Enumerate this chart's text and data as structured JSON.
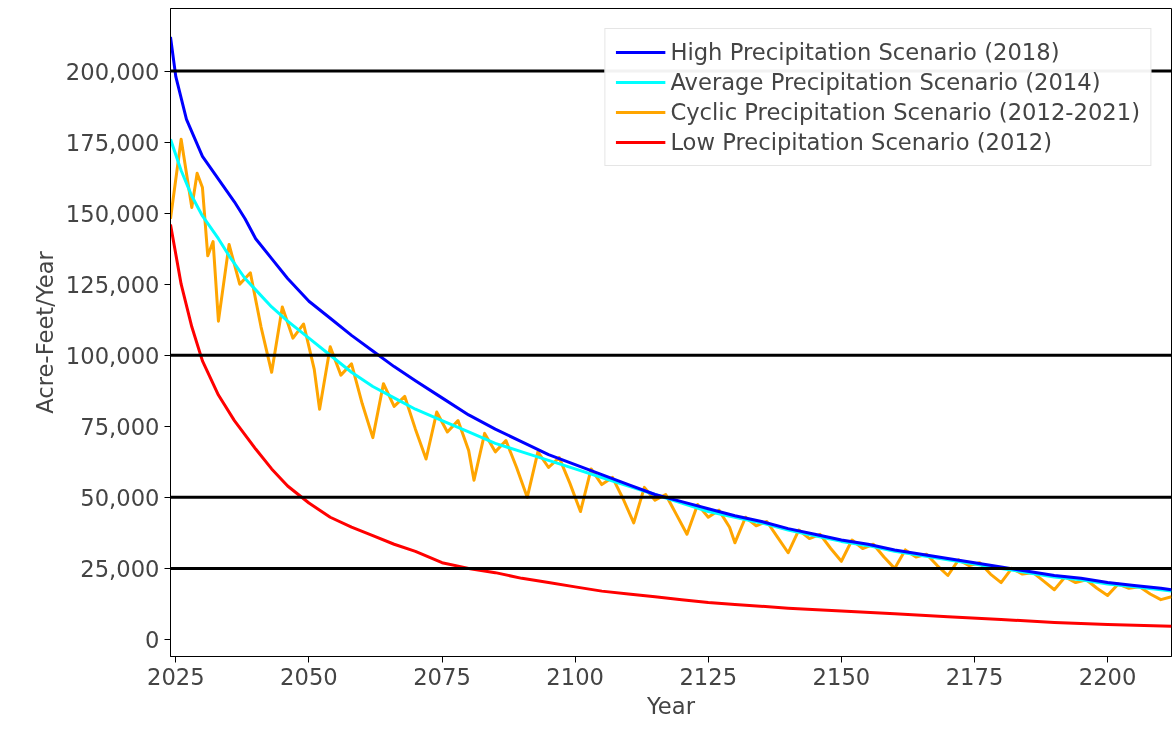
{
  "chart_data": {
    "type": "line",
    "xlabel": "Year",
    "ylabel": "Acre-Feet/Year",
    "xlim": [
      2024,
      2212
    ],
    "ylim": [
      -6000,
      222000
    ],
    "xticks": [
      2025,
      2050,
      2075,
      2100,
      2125,
      2150,
      2175,
      2200
    ],
    "yticks": [
      {
        "value": 0,
        "label": "0"
      },
      {
        "value": 25000,
        "label": "25,000"
      },
      {
        "value": 50000,
        "label": "50,000"
      },
      {
        "value": 75000,
        "label": "75,000"
      },
      {
        "value": 100000,
        "label": "100,000"
      },
      {
        "value": 125000,
        "label": "125,000"
      },
      {
        "value": 150000,
        "label": "150,000"
      },
      {
        "value": 175000,
        "label": "175,000"
      },
      {
        "value": 200000,
        "label": "200,000"
      }
    ],
    "grid": false,
    "legend": "top right",
    "ref_lines": [
      {
        "axis": "y",
        "value": 25000,
        "color": "#000000"
      },
      {
        "axis": "y",
        "value": 50000,
        "color": "#000000"
      },
      {
        "axis": "y",
        "value": 100000,
        "color": "#000000"
      },
      {
        "axis": "y",
        "value": 200000,
        "color": "#000000"
      }
    ],
    "series": [
      {
        "name": "High Precipitation Scenario (2018)",
        "color": "#0000ff",
        "x": [
          2024,
          2025,
          2027,
          2030,
          2033,
          2036,
          2038,
          2040,
          2043,
          2046,
          2050,
          2054,
          2058,
          2062,
          2066,
          2070,
          2075,
          2080,
          2085,
          2090,
          2095,
          2100,
          2105,
          2110,
          2115,
          2120,
          2125,
          2130,
          2135,
          2140,
          2145,
          2150,
          2155,
          2160,
          2165,
          2170,
          2175,
          2180,
          2185,
          2190,
          2195,
          2200,
          2205,
          2210,
          2212
        ],
        "values": [
          212000,
          198000,
          183000,
          170000,
          162000,
          154000,
          148000,
          141000,
          134000,
          127000,
          119000,
          113000,
          107000,
          101500,
          96000,
          91000,
          85000,
          79000,
          74000,
          69500,
          65000,
          61500,
          58000,
          54500,
          51000,
          48500,
          46000,
          43500,
          41500,
          39000,
          37000,
          35000,
          33500,
          31500,
          30000,
          28500,
          27000,
          25500,
          24000,
          22500,
          21500,
          20000,
          19000,
          18000,
          17500
        ]
      },
      {
        "name": "Average Precipitation Scenario (2014)",
        "color": "#00ffff",
        "x": [
          2024,
          2026,
          2028,
          2030,
          2033,
          2035,
          2038,
          2040,
          2043,
          2046,
          2050,
          2054,
          2058,
          2062,
          2066,
          2070,
          2075,
          2080,
          2085,
          2090,
          2095,
          2100,
          2105,
          2110,
          2115,
          2120,
          2125,
          2130,
          2135,
          2140,
          2145,
          2150,
          2155,
          2160,
          2165,
          2170,
          2175,
          2180,
          2185,
          2190,
          2195,
          2200,
          2205,
          2210,
          2212
        ],
        "values": [
          176000,
          165000,
          156000,
          149000,
          141000,
          135000,
          127000,
          123000,
          117000,
          112000,
          106000,
          100000,
          94000,
          89000,
          85000,
          81000,
          77000,
          73000,
          69000,
          66000,
          63000,
          60000,
          57000,
          54000,
          51000,
          48000,
          45000,
          43000,
          41000,
          38500,
          36500,
          34500,
          33000,
          31000,
          29500,
          28000,
          26500,
          25000,
          23500,
          22000,
          21000,
          19500,
          18500,
          17500,
          17000
        ]
      },
      {
        "name": "Cyclic Precipitation Scenario (2012-2021)",
        "color": "#ffa500",
        "x": [
          2024,
          2026,
          2028,
          2029,
          2030,
          2031,
          2032,
          2033,
          2035,
          2037,
          2039,
          2041,
          2043,
          2045,
          2047,
          2049,
          2051,
          2052,
          2054,
          2056,
          2058,
          2060,
          2062,
          2064,
          2066,
          2068,
          2070,
          2072,
          2074,
          2076,
          2078,
          2080,
          2081,
          2083,
          2085,
          2087,
          2089,
          2091,
          2093,
          2095,
          2097,
          2099,
          2101,
          2103,
          2105,
          2107,
          2109,
          2111,
          2113,
          2115,
          2117,
          2119,
          2121,
          2123,
          2125,
          2127,
          2129,
          2130,
          2132,
          2134,
          2136,
          2138,
          2140,
          2142,
          2144,
          2146,
          2148,
          2150,
          2152,
          2154,
          2156,
          2158,
          2160,
          2162,
          2164,
          2166,
          2168,
          2170,
          2172,
          2174,
          2176,
          2178,
          2180,
          2182,
          2184,
          2186,
          2188,
          2190,
          2192,
          2194,
          2196,
          2198,
          2200,
          2202,
          2204,
          2206,
          2208,
          2210,
          2212
        ],
        "values": [
          148000,
          176000,
          152000,
          164000,
          159000,
          135000,
          140000,
          112000,
          139000,
          125000,
          129000,
          110000,
          94000,
          117000,
          106000,
          111000,
          95000,
          81000,
          103000,
          93000,
          97000,
          83000,
          71000,
          90000,
          82000,
          85500,
          74000,
          63500,
          80000,
          73000,
          77000,
          66500,
          56000,
          72500,
          66000,
          70000,
          60500,
          50000,
          66000,
          60500,
          64000,
          55000,
          45000,
          60000,
          54500,
          57000,
          49500,
          41000,
          53500,
          49000,
          51000,
          44000,
          37000,
          47500,
          43000,
          45500,
          39500,
          34000,
          43000,
          40000,
          41500,
          36000,
          30500,
          38500,
          35500,
          37000,
          32000,
          27500,
          35000,
          32000,
          33500,
          29000,
          25000,
          31500,
          29000,
          30000,
          26000,
          22500,
          28000,
          26000,
          27000,
          23000,
          20000,
          25000,
          23000,
          23500,
          20500,
          17500,
          22000,
          20000,
          21000,
          18000,
          15500,
          19500,
          18000,
          18500,
          16000,
          14000,
          15000
        ]
      },
      {
        "name": "Low Precipitation Scenario (2012)",
        "color": "#ff0000",
        "x": [
          2024,
          2026,
          2028,
          2030,
          2033,
          2036,
          2040,
          2043,
          2046,
          2050,
          2054,
          2058,
          2062,
          2066,
          2070,
          2075,
          2080,
          2085,
          2090,
          2095,
          2100,
          2105,
          2110,
          2115,
          2120,
          2125,
          2130,
          2140,
          2150,
          2160,
          2170,
          2180,
          2190,
          2200,
          2212
        ],
        "values": [
          146000,
          125000,
          110000,
          98000,
          86000,
          77000,
          67000,
          60000,
          54000,
          48000,
          43000,
          39500,
          36500,
          33500,
          31000,
          27000,
          25000,
          23500,
          21500,
          20000,
          18500,
          17000,
          16000,
          15000,
          14000,
          13000,
          12300,
          11000,
          10000,
          9000,
          8000,
          7000,
          6000,
          5300,
          4600
        ]
      }
    ]
  }
}
